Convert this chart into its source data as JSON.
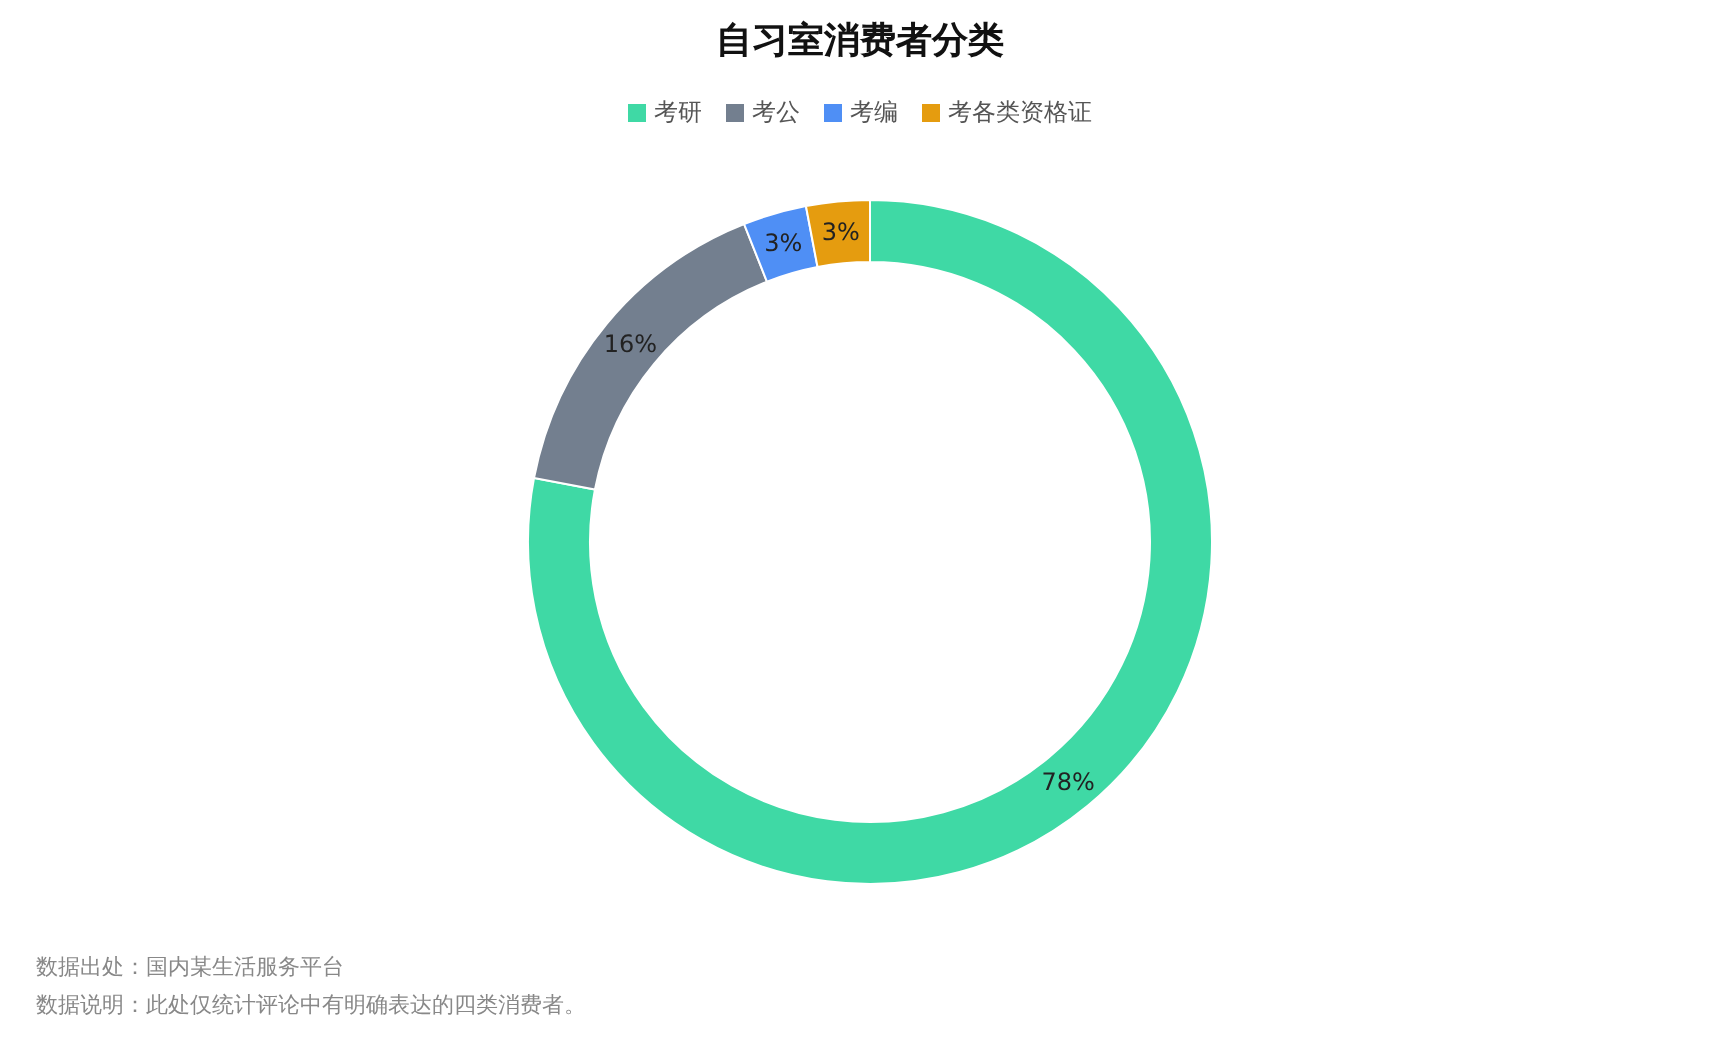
{
  "chart_data": {
    "type": "donut",
    "title": "自习室消费者分类",
    "categories": [
      "考研",
      "考公",
      "考编",
      "考各类资格证"
    ],
    "values": [
      78,
      16,
      3,
      3
    ],
    "colors": [
      "#3fd9a5",
      "#737f8f",
      "#4f8ff5",
      "#e59c0f"
    ],
    "value_labels": [
      "78%",
      "16%",
      "3%",
      "3%"
    ],
    "legend": "top",
    "annotations": [
      "数据出处：国内某生活服务平台",
      "数据说明：此处仅统计评论中有明确表达的四类消费者。"
    ]
  }
}
